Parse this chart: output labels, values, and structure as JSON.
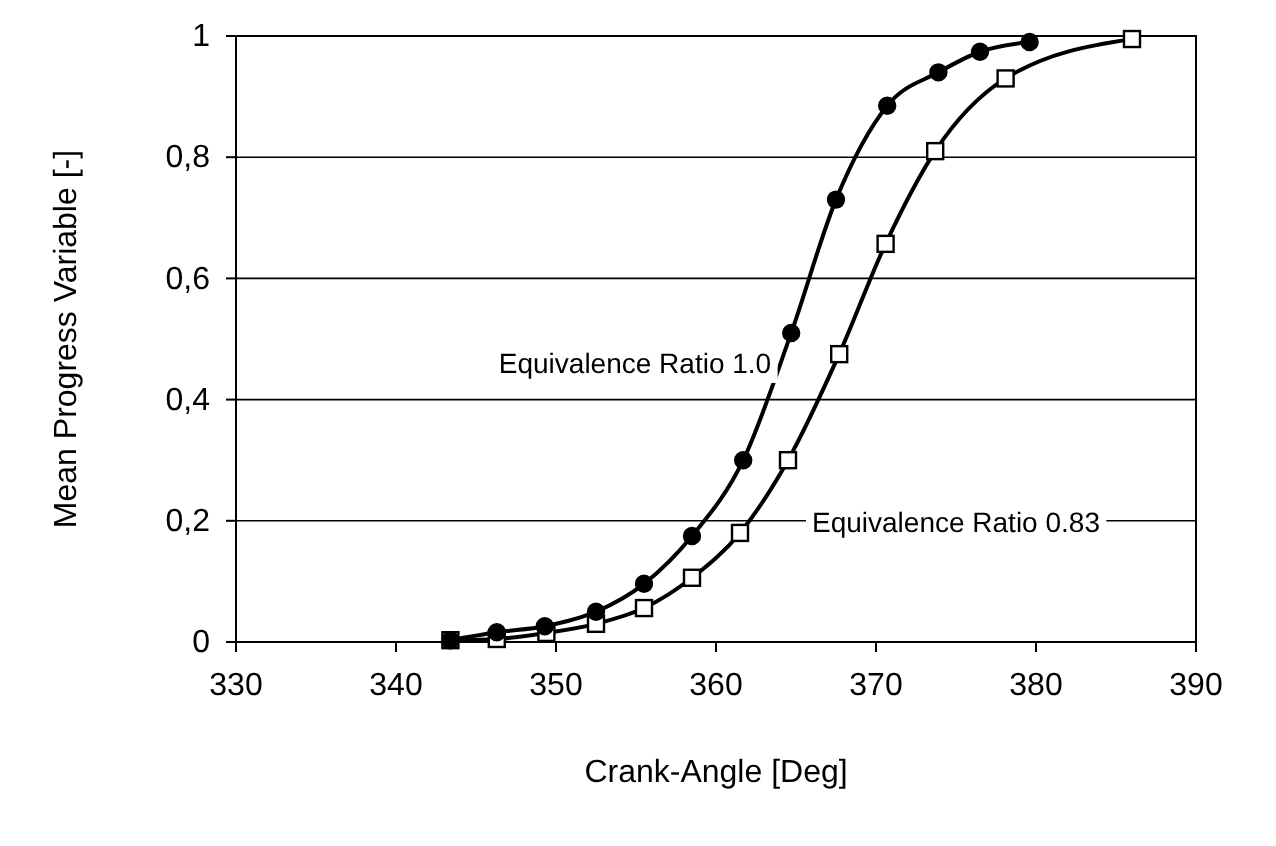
{
  "chart_data": {
    "type": "line",
    "xlabel": "Crank-Angle [Deg]",
    "ylabel": "Mean Progress Variable [-]",
    "xlim": [
      330,
      390
    ],
    "xticks": [
      330,
      340,
      350,
      360,
      370,
      380,
      390
    ],
    "ylim": [
      0,
      1
    ],
    "yticks": [
      0,
      {
        "value": 0.2,
        "label": "0,2"
      },
      {
        "value": 0.4,
        "label": "0,4"
      },
      {
        "value": 0.6,
        "label": "0,6"
      },
      {
        "value": 0.8,
        "label": "0,8"
      },
      1
    ],
    "grid": "y",
    "line_style": "solid",
    "series": [
      {
        "name": "Equivalence Ratio 1.0",
        "color": "#000000",
        "marker": "circle",
        "x": [
          343.4,
          346.3,
          349.3,
          352.5,
          355.5,
          358.5,
          361.7,
          364.7,
          367.5,
          370.7,
          373.9,
          376.5,
          379.6
        ],
        "values": [
          0.003,
          0.016,
          0.026,
          0.05,
          0.096,
          0.175,
          0.3,
          0.51,
          0.73,
          0.885,
          0.94,
          0.974,
          0.99
        ]
      },
      {
        "name": "Equivalence Ratio 0.83",
        "color": "#000000",
        "marker": "square",
        "x": [
          343.4,
          346.3,
          349.4,
          352.5,
          355.5,
          358.5,
          361.5,
          364.5,
          367.7,
          370.6,
          373.7,
          378.1,
          386
        ],
        "values": [
          0.003,
          0.005,
          0.015,
          0.03,
          0.056,
          0.106,
          0.18,
          0.3,
          0.475,
          0.657,
          0.81,
          0.93,
          0.995
        ]
      }
    ]
  }
}
